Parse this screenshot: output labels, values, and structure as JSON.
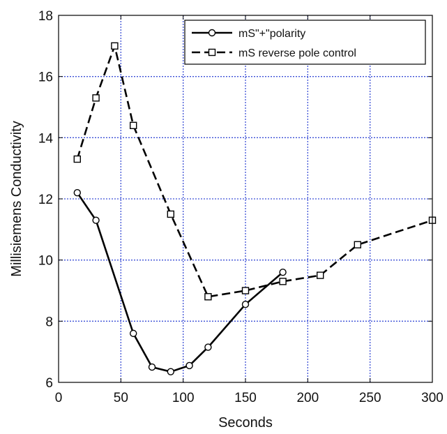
{
  "chart_data": {
    "type": "line",
    "title": "",
    "xlabel": "Seconds",
    "ylabel": "Millisiemens Conductivity",
    "xlim": [
      0,
      300
    ],
    "ylim": [
      6,
      18
    ],
    "xticks": [
      0,
      50,
      100,
      150,
      200,
      250,
      300
    ],
    "yticks": [
      6,
      8,
      10,
      12,
      14,
      16,
      18
    ],
    "grid": true,
    "legend_position": "top-right",
    "series": [
      {
        "name": "mS\"+\"polarity",
        "marker": "circle",
        "line_style": "solid",
        "color": "#000000",
        "x": [
          15,
          30,
          60,
          75,
          90,
          105,
          120,
          150,
          180
        ],
        "y": [
          12.2,
          11.3,
          7.6,
          6.5,
          6.35,
          6.55,
          7.15,
          8.55,
          9.6
        ]
      },
      {
        "name": "mS reverse pole control",
        "marker": "square",
        "line_style": "dashed",
        "color": "#000000",
        "x": [
          15,
          30,
          45,
          60,
          90,
          120,
          150,
          180,
          210,
          240,
          300
        ],
        "y": [
          13.3,
          15.3,
          17.0,
          14.4,
          11.5,
          8.8,
          9.0,
          9.3,
          9.5,
          10.5,
          11.3
        ]
      }
    ],
    "colors": {
      "grid": "#3b4fd6",
      "line": "#000000",
      "background": "#ffffff"
    }
  }
}
